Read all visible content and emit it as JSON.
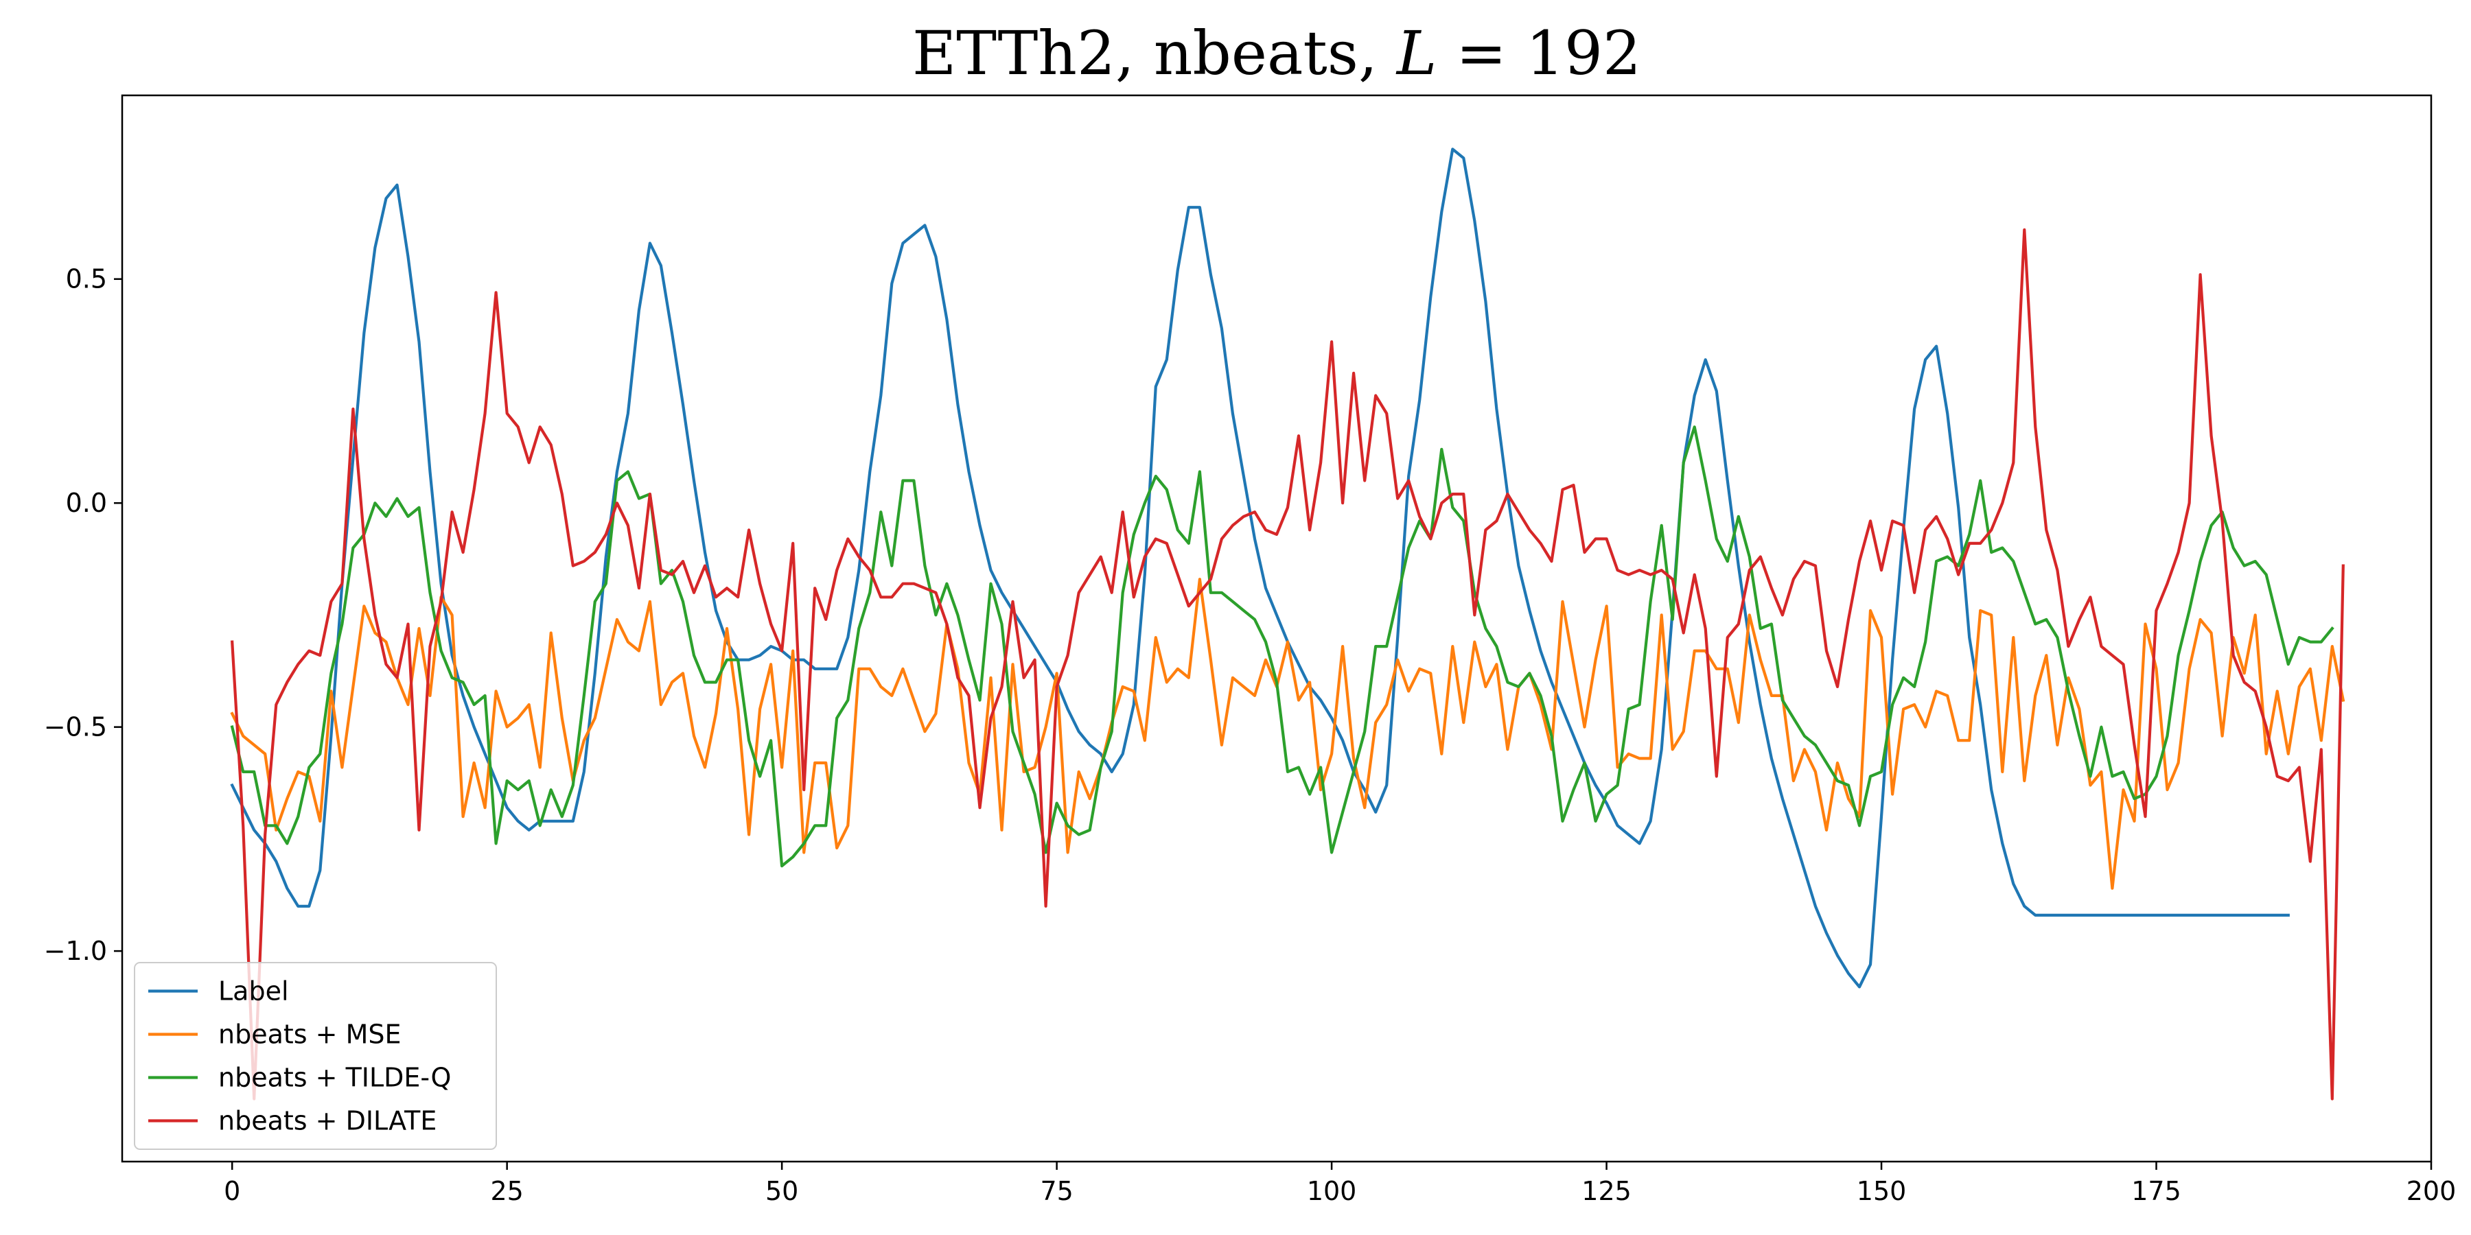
{
  "chart_data": {
    "type": "line",
    "title_prefix": "ETTh2, nbeats, ",
    "title_var": "L",
    "title_suffix": " = 192",
    "xlabel": "",
    "ylabel": "",
    "xlim": [
      -10,
      200
    ],
    "ylim": [
      -1.47,
      0.91
    ],
    "xticks": [
      0,
      25,
      50,
      75,
      100,
      125,
      150,
      175,
      200
    ],
    "xtick_labels": [
      "0",
      "25",
      "50",
      "75",
      "100",
      "125",
      "150",
      "175",
      "200"
    ],
    "yticks": [
      0.5,
      0.0,
      -0.5,
      -1.0
    ],
    "ytick_labels": [
      "0.5",
      "0.0",
      "−0.5",
      "−1.0"
    ],
    "grid": false,
    "legend_position": "lower-left",
    "series": [
      {
        "name": "Label",
        "color": "#1f77b4",
        "x_start": 0,
        "values": [
          -0.63,
          -0.68,
          -0.73,
          -0.76,
          -0.8,
          -0.86,
          -0.9,
          -0.9,
          -0.82,
          -0.52,
          -0.18,
          0.1,
          0.38,
          0.57,
          0.68,
          0.71,
          0.55,
          0.36,
          0.07,
          -0.18,
          -0.34,
          -0.43,
          -0.5,
          -0.56,
          -0.62,
          -0.68,
          -0.71,
          -0.73,
          -0.71,
          -0.71,
          -0.71,
          -0.71,
          -0.6,
          -0.38,
          -0.12,
          0.07,
          0.2,
          0.43,
          0.58,
          0.53,
          0.38,
          0.22,
          0.05,
          -0.11,
          -0.24,
          -0.31,
          -0.35,
          -0.35,
          -0.34,
          -0.32,
          -0.33,
          -0.35,
          -0.35,
          -0.37,
          -0.37,
          -0.37,
          -0.3,
          -0.15,
          0.07,
          0.24,
          0.49,
          0.58,
          0.6,
          0.62,
          0.55,
          0.41,
          0.22,
          0.07,
          -0.05,
          -0.15,
          -0.2,
          -0.24,
          -0.28,
          -0.32,
          -0.36,
          -0.4,
          -0.46,
          -0.51,
          -0.54,
          -0.56,
          -0.6,
          -0.56,
          -0.45,
          -0.16,
          0.26,
          0.32,
          0.52,
          0.66,
          0.66,
          0.51,
          0.39,
          0.2,
          0.06,
          -0.08,
          -0.19,
          -0.25,
          -0.31,
          -0.36,
          -0.41,
          -0.44,
          -0.48,
          -0.53,
          -0.6,
          -0.64,
          -0.69,
          -0.63,
          -0.3,
          0.06,
          0.23,
          0.46,
          0.65,
          0.79,
          0.77,
          0.63,
          0.45,
          0.21,
          0.02,
          -0.14,
          -0.24,
          -0.33,
          -0.4,
          -0.46,
          -0.52,
          -0.58,
          -0.63,
          -0.67,
          -0.72,
          -0.74,
          -0.76,
          -0.71,
          -0.55,
          -0.24,
          0.09,
          0.24,
          0.32,
          0.25,
          0.05,
          -0.14,
          -0.31,
          -0.45,
          -0.57,
          -0.66,
          -0.74,
          -0.82,
          -0.9,
          -0.96,
          -1.01,
          -1.05,
          -1.08,
          -1.03,
          -0.7,
          -0.35,
          -0.06,
          0.21,
          0.32,
          0.35,
          0.2,
          -0.01,
          -0.3,
          -0.45,
          -0.64,
          -0.76,
          -0.85,
          -0.9,
          -0.92,
          -0.92,
          -0.92,
          -0.92,
          -0.92,
          -0.92,
          -0.92,
          -0.92,
          -0.92,
          -0.92,
          -0.92,
          -0.92,
          -0.92,
          -0.92,
          -0.92,
          -0.92,
          -0.92,
          -0.92,
          -0.92,
          -0.92,
          -0.92,
          -0.92,
          -0.92,
          -0.92
        ]
      },
      {
        "name": "nbeats + MSE",
        "color": "#ff7f0e",
        "x_start": 0,
        "values": [
          -0.47,
          -0.52,
          -0.54,
          -0.56,
          -0.73,
          -0.66,
          -0.6,
          -0.61,
          -0.71,
          -0.42,
          -0.59,
          -0.41,
          -0.23,
          -0.29,
          -0.31,
          -0.39,
          -0.45,
          -0.28,
          -0.43,
          -0.21,
          -0.25,
          -0.7,
          -0.58,
          -0.68,
          -0.42,
          -0.5,
          -0.48,
          -0.45,
          -0.59,
          -0.29,
          -0.48,
          -0.62,
          -0.53,
          -0.48,
          -0.37,
          -0.26,
          -0.31,
          -0.33,
          -0.22,
          -0.45,
          -0.4,
          -0.38,
          -0.52,
          -0.59,
          -0.47,
          -0.28,
          -0.46,
          -0.74,
          -0.46,
          -0.36,
          -0.59,
          -0.33,
          -0.78,
          -0.58,
          -0.58,
          -0.77,
          -0.72,
          -0.37,
          -0.37,
          -0.41,
          -0.43,
          -0.37,
          -0.44,
          -0.51,
          -0.47,
          -0.27,
          -0.37,
          -0.58,
          -0.65,
          -0.39,
          -0.73,
          -0.36,
          -0.6,
          -0.59,
          -0.5,
          -0.38,
          -0.78,
          -0.6,
          -0.66,
          -0.59,
          -0.49,
          -0.41,
          -0.42,
          -0.53,
          -0.3,
          -0.4,
          -0.37,
          -0.39,
          -0.17,
          -0.35,
          -0.54,
          -0.39,
          -0.41,
          -0.43,
          -0.35,
          -0.41,
          -0.31,
          -0.44,
          -0.4,
          -0.64,
          -0.56,
          -0.32,
          -0.57,
          -0.68,
          -0.49,
          -0.45,
          -0.35,
          -0.42,
          -0.37,
          -0.38,
          -0.56,
          -0.32,
          -0.49,
          -0.31,
          -0.41,
          -0.36,
          -0.55,
          -0.41,
          -0.38,
          -0.45,
          -0.55,
          -0.22,
          -0.36,
          -0.5,
          -0.35,
          -0.23,
          -0.59,
          -0.56,
          -0.57,
          -0.57,
          -0.25,
          -0.55,
          -0.51,
          -0.33,
          -0.33,
          -0.37,
          -0.37,
          -0.49,
          -0.25,
          -0.35,
          -0.43,
          -0.43,
          -0.62,
          -0.55,
          -0.6,
          -0.73,
          -0.58,
          -0.66,
          -0.7,
          -0.24,
          -0.3,
          -0.65,
          -0.46,
          -0.45,
          -0.5,
          -0.42,
          -0.43,
          -0.53,
          -0.53,
          -0.24,
          -0.25,
          -0.6,
          -0.3,
          -0.62,
          -0.43,
          -0.34,
          -0.54,
          -0.39,
          -0.46,
          -0.63,
          -0.6,
          -0.86,
          -0.64,
          -0.71,
          -0.27,
          -0.37,
          -0.64,
          -0.58,
          -0.37,
          -0.26,
          -0.29,
          -0.52,
          -0.3,
          -0.38,
          -0.25,
          -0.56,
          -0.42,
          -0.56,
          -0.41,
          -0.37,
          -0.53,
          -0.32,
          -0.44
        ]
      },
      {
        "name": "nbeats + TILDE-Q",
        "color": "#2ca02c",
        "x_start": 0,
        "values": [
          -0.5,
          -0.6,
          -0.6,
          -0.72,
          -0.72,
          -0.76,
          -0.7,
          -0.59,
          -0.56,
          -0.38,
          -0.27,
          -0.1,
          -0.07,
          0.0,
          -0.03,
          0.01,
          -0.03,
          -0.01,
          -0.2,
          -0.33,
          -0.39,
          -0.4,
          -0.45,
          -0.43,
          -0.76,
          -0.62,
          -0.64,
          -0.62,
          -0.72,
          -0.64,
          -0.7,
          -0.63,
          -0.43,
          -0.22,
          -0.18,
          0.05,
          0.07,
          0.01,
          0.02,
          -0.18,
          -0.15,
          -0.22,
          -0.34,
          -0.4,
          -0.4,
          -0.35,
          -0.35,
          -0.53,
          -0.61,
          -0.53,
          -0.81,
          -0.79,
          -0.76,
          -0.72,
          -0.72,
          -0.48,
          -0.44,
          -0.28,
          -0.2,
          -0.02,
          -0.14,
          0.05,
          0.05,
          -0.14,
          -0.25,
          -0.18,
          -0.25,
          -0.35,
          -0.44,
          -0.18,
          -0.27,
          -0.51,
          -0.58,
          -0.65,
          -0.78,
          -0.67,
          -0.72,
          -0.74,
          -0.73,
          -0.59,
          -0.51,
          -0.2,
          -0.07,
          0.0,
          0.06,
          0.03,
          -0.06,
          -0.09,
          0.07,
          -0.2,
          -0.2,
          -0.22,
          -0.24,
          -0.26,
          -0.31,
          -0.4,
          -0.6,
          -0.59,
          -0.65,
          -0.59,
          -0.78,
          -0.69,
          -0.6,
          -0.51,
          -0.32,
          -0.32,
          -0.21,
          -0.1,
          -0.04,
          -0.08,
          0.12,
          -0.01,
          -0.04,
          -0.2,
          -0.28,
          -0.32,
          -0.4,
          -0.41,
          -0.38,
          -0.43,
          -0.52,
          -0.71,
          -0.64,
          -0.58,
          -0.71,
          -0.65,
          -0.63,
          -0.46,
          -0.45,
          -0.22,
          -0.05,
          -0.26,
          0.09,
          0.17,
          0.05,
          -0.08,
          -0.13,
          -0.03,
          -0.12,
          -0.28,
          -0.27,
          -0.44,
          -0.48,
          -0.52,
          -0.54,
          -0.58,
          -0.62,
          -0.63,
          -0.72,
          -0.61,
          -0.6,
          -0.45,
          -0.39,
          -0.41,
          -0.31,
          -0.13,
          -0.12,
          -0.14,
          -0.07,
          0.05,
          -0.11,
          -0.1,
          -0.13,
          -0.2,
          -0.27,
          -0.26,
          -0.3,
          -0.42,
          -0.52,
          -0.61,
          -0.5,
          -0.61,
          -0.6,
          -0.66,
          -0.65,
          -0.61,
          -0.52,
          -0.34,
          -0.24,
          -0.13,
          -0.05,
          -0.02,
          -0.1,
          -0.14,
          -0.13,
          -0.16,
          -0.26,
          -0.36,
          -0.3,
          -0.31,
          -0.31,
          -0.28
        ]
      },
      {
        "name": "nbeats + DILATE",
        "color": "#d62728",
        "x_start": 0,
        "values": [
          -0.31,
          -0.72,
          -1.33,
          -0.74,
          -0.45,
          -0.4,
          -0.36,
          -0.33,
          -0.34,
          -0.22,
          -0.18,
          0.21,
          -0.08,
          -0.25,
          -0.36,
          -0.39,
          -0.27,
          -0.73,
          -0.32,
          -0.22,
          -0.02,
          -0.11,
          0.03,
          0.2,
          0.47,
          0.2,
          0.17,
          0.09,
          0.17,
          0.13,
          0.02,
          -0.14,
          -0.13,
          -0.11,
          -0.07,
          0.0,
          -0.05,
          -0.19,
          0.02,
          -0.15,
          -0.16,
          -0.13,
          -0.2,
          -0.14,
          -0.21,
          -0.19,
          -0.21,
          -0.06,
          -0.18,
          -0.27,
          -0.33,
          -0.09,
          -0.64,
          -0.19,
          -0.26,
          -0.15,
          -0.08,
          -0.12,
          -0.15,
          -0.21,
          -0.21,
          -0.18,
          -0.18,
          -0.19,
          -0.2,
          -0.27,
          -0.39,
          -0.43,
          -0.68,
          -0.48,
          -0.41,
          -0.22,
          -0.39,
          -0.35,
          -0.9,
          -0.41,
          -0.34,
          -0.2,
          -0.16,
          -0.12,
          -0.2,
          -0.02,
          -0.21,
          -0.12,
          -0.08,
          -0.09,
          -0.16,
          -0.23,
          -0.2,
          -0.17,
          -0.08,
          -0.05,
          -0.03,
          -0.02,
          -0.06,
          -0.07,
          -0.01,
          0.15,
          -0.06,
          0.09,
          0.36,
          0.0,
          0.29,
          0.05,
          0.24,
          0.2,
          0.01,
          0.05,
          -0.03,
          -0.08,
          0.0,
          0.02,
          0.02,
          -0.25,
          -0.06,
          -0.04,
          0.02,
          -0.02,
          -0.06,
          -0.09,
          -0.13,
          0.03,
          0.04,
          -0.11,
          -0.08,
          -0.08,
          -0.15,
          -0.16,
          -0.15,
          -0.16,
          -0.15,
          -0.17,
          -0.29,
          -0.16,
          -0.28,
          -0.61,
          -0.3,
          -0.27,
          -0.15,
          -0.12,
          -0.19,
          -0.25,
          -0.17,
          -0.13,
          -0.14,
          -0.33,
          -0.41,
          -0.26,
          -0.13,
          -0.04,
          -0.15,
          -0.04,
          -0.05,
          -0.2,
          -0.06,
          -0.03,
          -0.08,
          -0.16,
          -0.09,
          -0.09,
          -0.06,
          0.0,
          0.09,
          0.61,
          0.17,
          -0.06,
          -0.15,
          -0.32,
          -0.26,
          -0.21,
          -0.32,
          -0.34,
          -0.36,
          -0.54,
          -0.7,
          -0.24,
          -0.18,
          -0.11,
          0.0,
          0.51,
          0.15,
          -0.04,
          -0.34,
          -0.4,
          -0.42,
          -0.5,
          -0.61,
          -0.62,
          -0.59,
          -0.8,
          -0.55,
          -1.33,
          -0.14
        ]
      }
    ]
  }
}
